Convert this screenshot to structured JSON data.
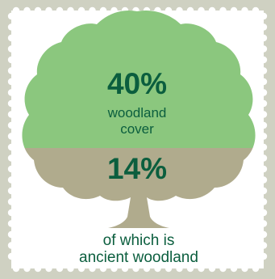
{
  "colors": {
    "frame": "#cfd1c2",
    "card": "#ffffff",
    "canopy_upper": "#8bc77e",
    "canopy_lower": "#b0ab8d",
    "trunk": "#b0ab8d",
    "text": "#0b5e3e"
  },
  "woodland": {
    "percent": "40%",
    "label_line1": "woodland",
    "label_line2": "cover"
  },
  "ancient": {
    "percent": "14%",
    "caption_line1": "of which is",
    "caption_line2": "ancient woodland"
  }
}
